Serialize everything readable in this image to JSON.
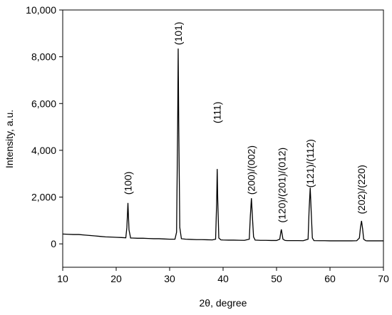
{
  "chart_data": {
    "type": "line",
    "x_label": "2θ, degree",
    "y_label": "Intensity, a.u.",
    "xlim": [
      10,
      70
    ],
    "xticks": [
      10,
      20,
      30,
      40,
      50,
      60,
      70
    ],
    "ylim": [
      -1000,
      10000
    ],
    "yticks": [
      0,
      {
        "value": 2000,
        "label": "2,000"
      },
      {
        "value": 4000,
        "label": "4,000"
      },
      {
        "value": 6000,
        "label": "6,000"
      },
      {
        "value": 8000,
        "label": "8,000"
      },
      {
        "value": 10000,
        "label": "10,000"
      }
    ],
    "series": [
      {
        "color": "#000000",
        "x": [
          10,
          11,
          12,
          13,
          14,
          15,
          16,
          17,
          18,
          19,
          20,
          21,
          21.8,
          22.0,
          22.2,
          22.4,
          22.7,
          23,
          24,
          25,
          26,
          27,
          28,
          29,
          30,
          31,
          31.3,
          31.5,
          31.6,
          31.7,
          31.9,
          32.2,
          33,
          34,
          35,
          36,
          37,
          38,
          38.6,
          38.8,
          38.9,
          39.0,
          39.2,
          39.6,
          40,
          41,
          42,
          43,
          44,
          44.9,
          45.1,
          45.3,
          45.5,
          45.7,
          46,
          47,
          48,
          49,
          50,
          50.6,
          50.8,
          50.9,
          51.0,
          51.2,
          51.6,
          52,
          53,
          54,
          55,
          55.9,
          56.1,
          56.3,
          56.5,
          56.7,
          57,
          58,
          59,
          60,
          61,
          62,
          63,
          64,
          65,
          65.5,
          65.7,
          65.9,
          66.1,
          66.3,
          66.7,
          67,
          68,
          69,
          70
        ],
        "values": [
          420,
          410,
          400,
          400,
          380,
          360,
          340,
          320,
          300,
          290,
          280,
          270,
          260,
          700,
          1750,
          600,
          250,
          250,
          240,
          240,
          230,
          220,
          220,
          210,
          200,
          200,
          500,
          5000,
          8350,
          5200,
          700,
          220,
          200,
          190,
          180,
          180,
          175,
          170,
          200,
          1800,
          3200,
          1900,
          250,
          170,
          165,
          160,
          160,
          155,
          150,
          200,
          1200,
          1950,
          1100,
          300,
          160,
          150,
          150,
          145,
          145,
          200,
          500,
          620,
          480,
          200,
          145,
          140,
          140,
          140,
          135,
          200,
          1500,
          2400,
          1300,
          250,
          140,
          135,
          135,
          130,
          130,
          130,
          130,
          130,
          135,
          250,
          700,
          980,
          650,
          200,
          135,
          130,
          130,
          130,
          130
        ]
      }
    ],
    "annotations": [
      {
        "text": "(100)",
        "x": 22.2,
        "y": 2100
      },
      {
        "text": "(101)",
        "x": 31.6,
        "y": 8500
      },
      {
        "text": "(111)",
        "x": 38.9,
        "y": 5150
      },
      {
        "text": "(200)/(002)",
        "x": 45.3,
        "y": 2100
      },
      {
        "text": "(120)/(201)/(012)",
        "x": 51.0,
        "y": 900
      },
      {
        "text": "(121)/(112)",
        "x": 56.3,
        "y": 2400
      },
      {
        "text": "(202)/(220)",
        "x": 65.9,
        "y": 1270
      }
    ]
  }
}
